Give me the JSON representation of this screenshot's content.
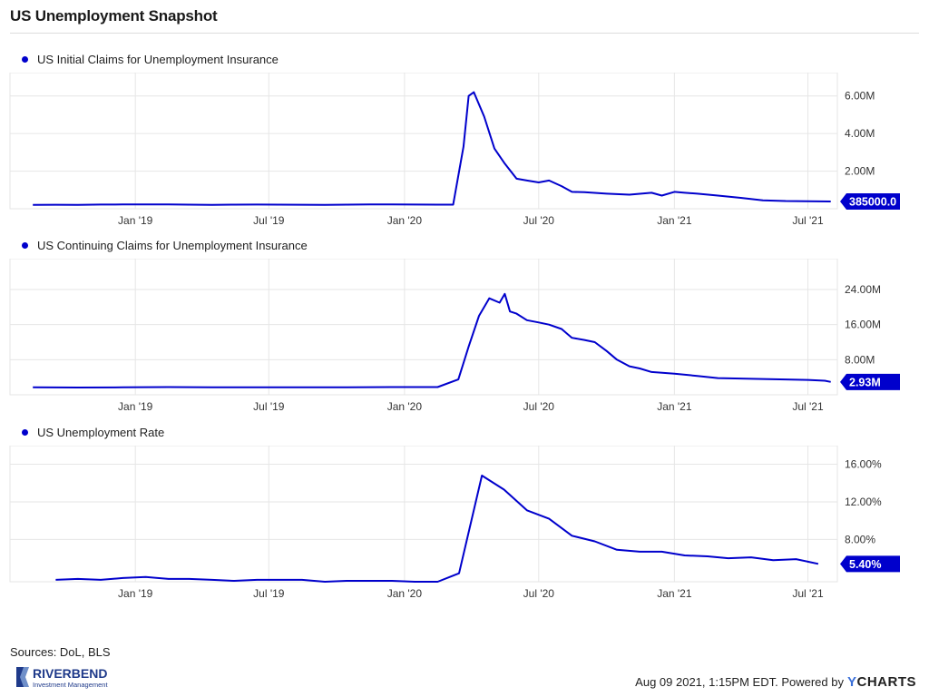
{
  "page": {
    "title": "US Unemployment Snapshot",
    "sources": "Sources: DoL, BLS",
    "credit": "Aug 09 2021, 1:15PM EDT. Powered by",
    "credit_brand_y": "Y",
    "credit_brand_rest": "CHARTS",
    "logo": {
      "name": "RIVERBEND",
      "tagline": "Investment Management",
      "color": "#1f3a8a"
    }
  },
  "colors": {
    "series": "#0000cc",
    "grid": "#e6e6e6",
    "label_bg": "#0000cc",
    "label_text": "#ffffff"
  },
  "chart_data": [
    {
      "type": "line",
      "legend": "US Initial Claims for Unemployment Insurance",
      "x_ticks": [
        "Jan '19",
        "Jul '19",
        "Jan '20",
        "Jul '20",
        "Jan '21",
        "Jul '21"
      ],
      "y_ticks": [
        "2.00M",
        "4.00M",
        "6.00M"
      ],
      "ylim": [
        0,
        7000000
      ],
      "last_value_label": "385000.0",
      "series": [
        {
          "x": [
            "2018-08",
            "2018-09",
            "2018-10",
            "2018-11",
            "2018-12",
            "2019-01",
            "2019-02",
            "2019-03",
            "2019-04",
            "2019-05",
            "2019-06",
            "2019-07",
            "2019-08",
            "2019-09",
            "2019-10",
            "2019-11",
            "2019-12",
            "2020-01",
            "2020-02",
            "2020-03-07",
            "2020-03-21",
            "2020-03-28",
            "2020-04-04",
            "2020-04-18",
            "2020-05-02",
            "2020-05-16",
            "2020-06-01",
            "2020-06-15",
            "2020-07-01",
            "2020-07-15",
            "2020-08-01",
            "2020-08-15",
            "2020-09-01",
            "2020-10-01",
            "2020-11-01",
            "2020-12-01",
            "2020-12-15",
            "2021-01-01",
            "2021-01-15",
            "2021-02-01",
            "2021-03-01",
            "2021-04-01",
            "2021-05-01",
            "2021-06-01",
            "2021-07-01",
            "2021-08-01"
          ],
          "y": [
            210000,
            212000,
            208000,
            220000,
            225000,
            230000,
            225000,
            215000,
            210000,
            215000,
            220000,
            215000,
            212000,
            210000,
            215000,
            225000,
            230000,
            220000,
            215000,
            215000,
            3300000,
            6000000,
            6200000,
            4900000,
            3200000,
            2400000,
            1600000,
            1500000,
            1400000,
            1500000,
            1200000,
            900000,
            880000,
            800000,
            750000,
            850000,
            700000,
            900000,
            850000,
            800000,
            700000,
            580000,
            450000,
            410000,
            400000,
            385000
          ]
        }
      ]
    },
    {
      "type": "line",
      "legend": "US Continuing Claims for Unemployment Insurance",
      "x_ticks": [
        "Jan '19",
        "Jul '19",
        "Jan '20",
        "Jul '20",
        "Jan '21",
        "Jul '21"
      ],
      "y_ticks": [
        "8.00M",
        "16.00M",
        "24.00M"
      ],
      "ylim": [
        0,
        30000000
      ],
      "last_value_label": "2.93M",
      "series": [
        {
          "x": [
            "2018-08",
            "2018-10",
            "2018-12",
            "2019-02",
            "2019-04",
            "2019-06",
            "2019-08",
            "2019-10",
            "2019-12",
            "2020-02",
            "2020-03-14",
            "2020-03-28",
            "2020-04-11",
            "2020-04-25",
            "2020-05-09",
            "2020-05-16",
            "2020-05-23",
            "2020-06-01",
            "2020-06-15",
            "2020-07-01",
            "2020-07-15",
            "2020-08-01",
            "2020-08-15",
            "2020-09-01",
            "2020-09-15",
            "2020-10-01",
            "2020-10-15",
            "2020-11-01",
            "2020-11-15",
            "2020-12-01",
            "2021-01-01",
            "2021-02-01",
            "2021-03-01",
            "2021-04-01",
            "2021-05-01",
            "2021-06-01",
            "2021-07-01",
            "2021-07-24",
            "2021-08-01"
          ],
          "y": [
            1700000,
            1650000,
            1700000,
            1750000,
            1700000,
            1700000,
            1700000,
            1700000,
            1750000,
            1750000,
            3500000,
            11000000,
            18000000,
            22000000,
            21000000,
            23000000,
            19000000,
            18500000,
            17000000,
            16500000,
            16000000,
            15000000,
            13000000,
            12500000,
            12000000,
            10000000,
            8000000,
            6500000,
            6000000,
            5200000,
            4800000,
            4300000,
            3800000,
            3700000,
            3600000,
            3500000,
            3400000,
            3200000,
            2930000
          ]
        }
      ]
    },
    {
      "type": "line",
      "legend": "US Unemployment Rate",
      "x_ticks": [
        "Jan '19",
        "Jul '19",
        "Jan '20",
        "Jul '20",
        "Jan '21",
        "Jul '21"
      ],
      "y_ticks": [
        "8.00%",
        "12.00%",
        "16.00%"
      ],
      "ylim": [
        3.5,
        17.5
      ],
      "last_value_label": "5.40%",
      "series": [
        {
          "x": [
            "2018-09",
            "2018-10",
            "2018-11",
            "2018-12",
            "2019-01",
            "2019-02",
            "2019-03",
            "2019-04",
            "2019-05",
            "2019-06",
            "2019-07",
            "2019-08",
            "2019-09",
            "2019-10",
            "2019-11",
            "2019-12",
            "2020-01",
            "2020-02",
            "2020-03",
            "2020-04",
            "2020-05",
            "2020-06",
            "2020-07",
            "2020-08",
            "2020-09",
            "2020-10",
            "2020-11",
            "2020-12",
            "2021-01",
            "2021-02",
            "2021-03",
            "2021-04",
            "2021-05",
            "2021-06",
            "2021-07"
          ],
          "y": [
            3.7,
            3.8,
            3.7,
            3.9,
            4.0,
            3.8,
            3.8,
            3.7,
            3.6,
            3.7,
            3.7,
            3.7,
            3.5,
            3.6,
            3.6,
            3.6,
            3.5,
            3.5,
            4.4,
            14.8,
            13.3,
            11.1,
            10.2,
            8.4,
            7.8,
            6.9,
            6.7,
            6.7,
            6.3,
            6.2,
            6.0,
            6.1,
            5.8,
            5.9,
            5.4
          ]
        }
      ]
    }
  ]
}
